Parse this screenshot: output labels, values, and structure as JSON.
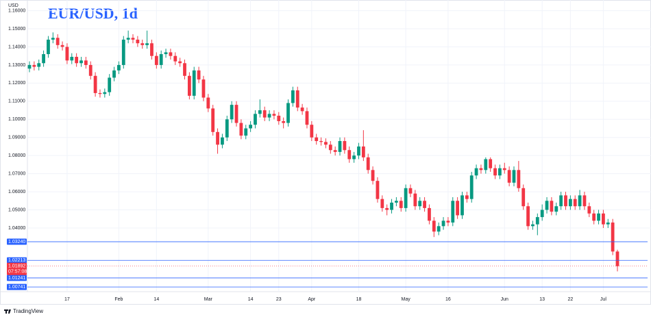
{
  "chart_data": {
    "type": "candlestick",
    "title": "EUR/USD, 1d",
    "unit": "USD",
    "brand": "TradingView",
    "up_color": "#089981",
    "down_color": "#f23645",
    "line_color": "#2962ff",
    "categories": [
      null,
      null,
      null,
      null,
      null,
      null,
      null,
      null,
      "17",
      null,
      null,
      null,
      null,
      null,
      null,
      null,
      null,
      null,
      null,
      "Feb",
      null,
      null,
      null,
      null,
      null,
      null,
      null,
      "14",
      null,
      null,
      null,
      null,
      null,
      null,
      null,
      null,
      null,
      null,
      "Mar",
      null,
      null,
      null,
      null,
      null,
      null,
      null,
      null,
      "14",
      null,
      null,
      null,
      null,
      null,
      "23",
      null,
      null,
      null,
      null,
      null,
      null,
      "Apr",
      null,
      null,
      null,
      null,
      null,
      null,
      null,
      null,
      null,
      "18",
      null,
      null,
      null,
      null,
      null,
      null,
      null,
      null,
      null,
      "May",
      null,
      null,
      null,
      null,
      null,
      null,
      null,
      null,
      "16",
      null,
      null,
      null,
      null,
      null,
      null,
      null,
      null,
      null,
      null,
      null,
      "Jun",
      null,
      null,
      null,
      null,
      null,
      null,
      null,
      "13",
      null,
      null,
      null,
      null,
      null,
      "22",
      null,
      null,
      null,
      null,
      null,
      null,
      "Jul",
      null,
      null,
      null
    ],
    "open": [
      1.128,
      1.13,
      1.129,
      1.131,
      1.136,
      1.144,
      1.145,
      1.141,
      1.14,
      1.1325,
      1.1345,
      1.131,
      1.1325,
      1.13,
      1.124,
      1.1145,
      1.114,
      1.115,
      1.123,
      1.127,
      1.13,
      1.144,
      1.145,
      1.144,
      1.142,
      1.141,
      1.142,
      1.135,
      1.13,
      1.136,
      1.137,
      1.135,
      1.132,
      1.131,
      1.124,
      1.113,
      1.127,
      1.122,
      1.112,
      1.106,
      1.093,
      1.086,
      1.09,
      1.1,
      1.108,
      1.098,
      1.091,
      1.095,
      1.097,
      1.103,
      1.105,
      1.101,
      1.103,
      1.102,
      1.099,
      1.098,
      1.109,
      1.116,
      1.1065,
      1.1045,
      1.097,
      1.09,
      1.088,
      1.0875,
      1.086,
      1.083,
      1.082,
      1.088,
      1.083,
      1.078,
      1.08,
      1.085,
      1.079,
      1.072,
      1.066,
      1.056,
      1.051,
      1.05,
      1.054,
      1.055,
      1.051,
      1.062,
      1.059,
      1.052,
      1.055,
      1.051,
      1.044,
      1.038,
      1.041,
      1.044,
      1.043,
      1.055,
      1.047,
      1.058,
      1.056,
      1.069,
      1.073,
      1.072,
      1.078,
      1.073,
      1.069,
      1.073,
      1.072,
      1.065,
      1.072,
      1.062,
      1.052,
      1.041,
      1.042,
      1.046,
      1.05,
      1.055,
      1.049,
      1.052,
      1.058,
      1.052,
      1.056,
      1.052,
      1.058,
      1.052,
      1.048,
      1.044,
      1.048,
      1.042,
      1.043,
      1.027
    ],
    "high": [
      1.132,
      1.132,
      1.133,
      1.138,
      1.146,
      1.148,
      1.147,
      1.143,
      1.142,
      1.1365,
      1.1365,
      1.1345,
      1.1345,
      1.132,
      1.126,
      1.1165,
      1.117,
      1.125,
      1.129,
      1.132,
      1.146,
      1.149,
      1.147,
      1.146,
      1.144,
      1.149,
      1.144,
      1.137,
      1.138,
      1.139,
      1.139,
      1.137,
      1.134,
      1.133,
      1.126,
      1.129,
      1.129,
      1.124,
      1.114,
      1.108,
      1.095,
      1.092,
      1.102,
      1.11,
      1.11,
      1.1,
      1.097,
      1.099,
      1.105,
      1.111,
      1.107,
      1.105,
      1.105,
      1.104,
      1.101,
      1.111,
      1.118,
      1.118,
      1.1085,
      1.1065,
      1.099,
      1.092,
      1.09,
      1.0895,
      1.088,
      1.085,
      1.09,
      1.09,
      1.085,
      1.082,
      1.087,
      1.094,
      1.081,
      1.074,
      1.068,
      1.058,
      1.053,
      1.056,
      1.057,
      1.057,
      1.064,
      1.064,
      1.061,
      1.057,
      1.057,
      1.053,
      1.046,
      1.043,
      1.046,
      1.046,
      1.057,
      1.057,
      1.06,
      1.06,
      1.071,
      1.075,
      1.075,
      1.079,
      1.079,
      1.075,
      1.075,
      1.076,
      1.074,
      1.074,
      1.077,
      1.064,
      1.054,
      1.044,
      1.048,
      1.053,
      1.057,
      1.057,
      1.054,
      1.06,
      1.06,
      1.058,
      1.058,
      1.061,
      1.06,
      1.054,
      1.05,
      1.05,
      1.05,
      1.045,
      1.045,
      1.028
    ],
    "low": [
      1.126,
      1.127,
      1.127,
      1.129,
      1.134,
      1.142,
      1.139,
      1.138,
      1.1305,
      1.1305,
      1.129,
      1.129,
      1.128,
      1.122,
      1.1125,
      1.112,
      1.112,
      1.113,
      1.121,
      1.125,
      1.128,
      1.142,
      1.142,
      1.14,
      1.139,
      1.139,
      1.133,
      1.128,
      1.128,
      1.134,
      1.133,
      1.13,
      1.129,
      1.122,
      1.111,
      1.111,
      1.12,
      1.11,
      1.104,
      1.091,
      1.081,
      1.084,
      1.088,
      1.098,
      1.096,
      1.089,
      1.089,
      1.093,
      1.095,
      1.101,
      1.099,
      1.099,
      1.1,
      1.097,
      1.095,
      1.096,
      1.107,
      1.1045,
      1.1025,
      1.095,
      1.088,
      1.086,
      1.0855,
      1.084,
      1.081,
      1.08,
      1.08,
      1.081,
      1.076,
      1.076,
      1.078,
      1.077,
      1.07,
      1.064,
      1.054,
      1.049,
      1.047,
      1.048,
      1.052,
      1.049,
      1.049,
      1.057,
      1.05,
      1.05,
      1.049,
      1.042,
      1.035,
      1.036,
      1.039,
      1.041,
      1.041,
      1.045,
      1.045,
      1.054,
      1.054,
      1.067,
      1.07,
      1.07,
      1.071,
      1.067,
      1.067,
      1.07,
      1.063,
      1.063,
      1.06,
      1.05,
      1.039,
      1.039,
      1.036,
      1.044,
      1.048,
      1.047,
      1.047,
      1.05,
      1.05,
      1.05,
      1.05,
      1.05,
      1.05,
      1.046,
      1.042,
      1.042,
      1.04,
      1.04,
      1.025,
      1.016
    ],
    "close": [
      1.13,
      1.129,
      1.131,
      1.136,
      1.144,
      1.145,
      1.141,
      1.14,
      1.1325,
      1.1345,
      1.131,
      1.1325,
      1.13,
      1.124,
      1.1145,
      1.114,
      1.115,
      1.123,
      1.127,
      1.13,
      1.144,
      1.145,
      1.144,
      1.142,
      1.141,
      1.142,
      1.135,
      1.13,
      1.136,
      1.137,
      1.135,
      1.132,
      1.131,
      1.124,
      1.113,
      1.127,
      1.122,
      1.112,
      1.106,
      1.093,
      1.086,
      1.09,
      1.1,
      1.108,
      1.098,
      1.091,
      1.095,
      1.097,
      1.103,
      1.105,
      1.101,
      1.103,
      1.102,
      1.099,
      1.098,
      1.109,
      1.116,
      1.1065,
      1.1045,
      1.097,
      1.09,
      1.088,
      1.0875,
      1.086,
      1.083,
      1.082,
      1.088,
      1.083,
      1.078,
      1.08,
      1.085,
      1.079,
      1.072,
      1.066,
      1.056,
      1.051,
      1.05,
      1.054,
      1.055,
      1.051,
      1.062,
      1.059,
      1.052,
      1.055,
      1.051,
      1.044,
      1.038,
      1.041,
      1.044,
      1.043,
      1.055,
      1.047,
      1.058,
      1.056,
      1.069,
      1.073,
      1.072,
      1.078,
      1.073,
      1.069,
      1.073,
      1.072,
      1.065,
      1.072,
      1.062,
      1.052,
      1.041,
      1.042,
      1.046,
      1.05,
      1.055,
      1.049,
      1.052,
      1.058,
      1.052,
      1.056,
      1.052,
      1.058,
      1.052,
      1.048,
      1.044,
      1.048,
      1.042,
      1.043,
      1.027,
      1.01892
    ],
    "ylim": [
      1.0052,
      1.164
    ],
    "yticks": [
      {
        "value": 1.16,
        "label": "1.16000"
      },
      {
        "value": 1.15,
        "label": "1.15000"
      },
      {
        "value": 1.14,
        "label": "1.14000"
      },
      {
        "value": 1.13,
        "label": "1.13000"
      },
      {
        "value": 1.12,
        "label": "1.12000"
      },
      {
        "value": 1.11,
        "label": "1.11000"
      },
      {
        "value": 1.1,
        "label": "1.10000"
      },
      {
        "value": 1.09,
        "label": "1.09000"
      },
      {
        "value": 1.08,
        "label": "1.08000"
      },
      {
        "value": 1.07,
        "label": "1.07000"
      },
      {
        "value": 1.06,
        "label": "1.06000"
      },
      {
        "value": 1.05,
        "label": "1.05000"
      },
      {
        "value": 1.04,
        "label": "1.04000"
      }
    ],
    "grid": true,
    "price_lines": [
      {
        "value": 1.0324,
        "label": "1.03240"
      },
      {
        "value": 1.02213,
        "label": "1.02213"
      },
      {
        "value": 1.01241,
        "label": "1.01241"
      },
      {
        "value": 1.00741,
        "label": "1.00741"
      }
    ],
    "current_price": {
      "value": 1.01892,
      "label": "1.01892",
      "countdown": "07:57:08"
    }
  }
}
